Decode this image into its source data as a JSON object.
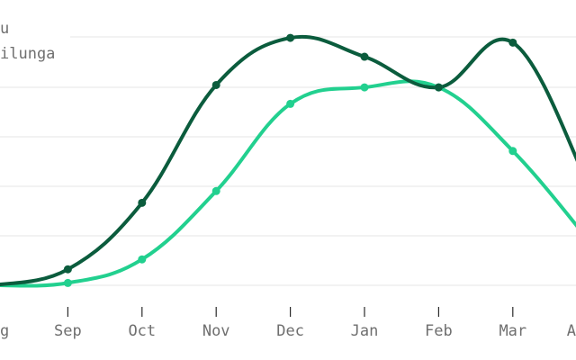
{
  "chart_data": {
    "type": "line",
    "categories": [
      "Aug",
      "Sep",
      "Oct",
      "Nov",
      "Dec",
      "Jan",
      "Feb",
      "Mar",
      "Apr"
    ],
    "visible_category_text": [
      "g",
      "Sep",
      "Oct",
      "Nov",
      "Dec",
      "Jan",
      "Feb",
      "Mar",
      "A"
    ],
    "series": [
      {
        "name": "u",
        "color": "#0b5c3d",
        "values": [
          0,
          3.4,
          17.5,
          42.5,
          52.5,
          48.5,
          42.0,
          51.5,
          22.0
        ]
      },
      {
        "name": "ilunga",
        "color": "#22d08f",
        "values": [
          0,
          0.5,
          5.5,
          20.0,
          38.5,
          42.0,
          42.0,
          28.5,
          10.0
        ]
      }
    ],
    "ylim": [
      0,
      55
    ],
    "grid": true,
    "legend_position": "top-left",
    "title": "",
    "xlabel": "",
    "ylabel": ""
  }
}
